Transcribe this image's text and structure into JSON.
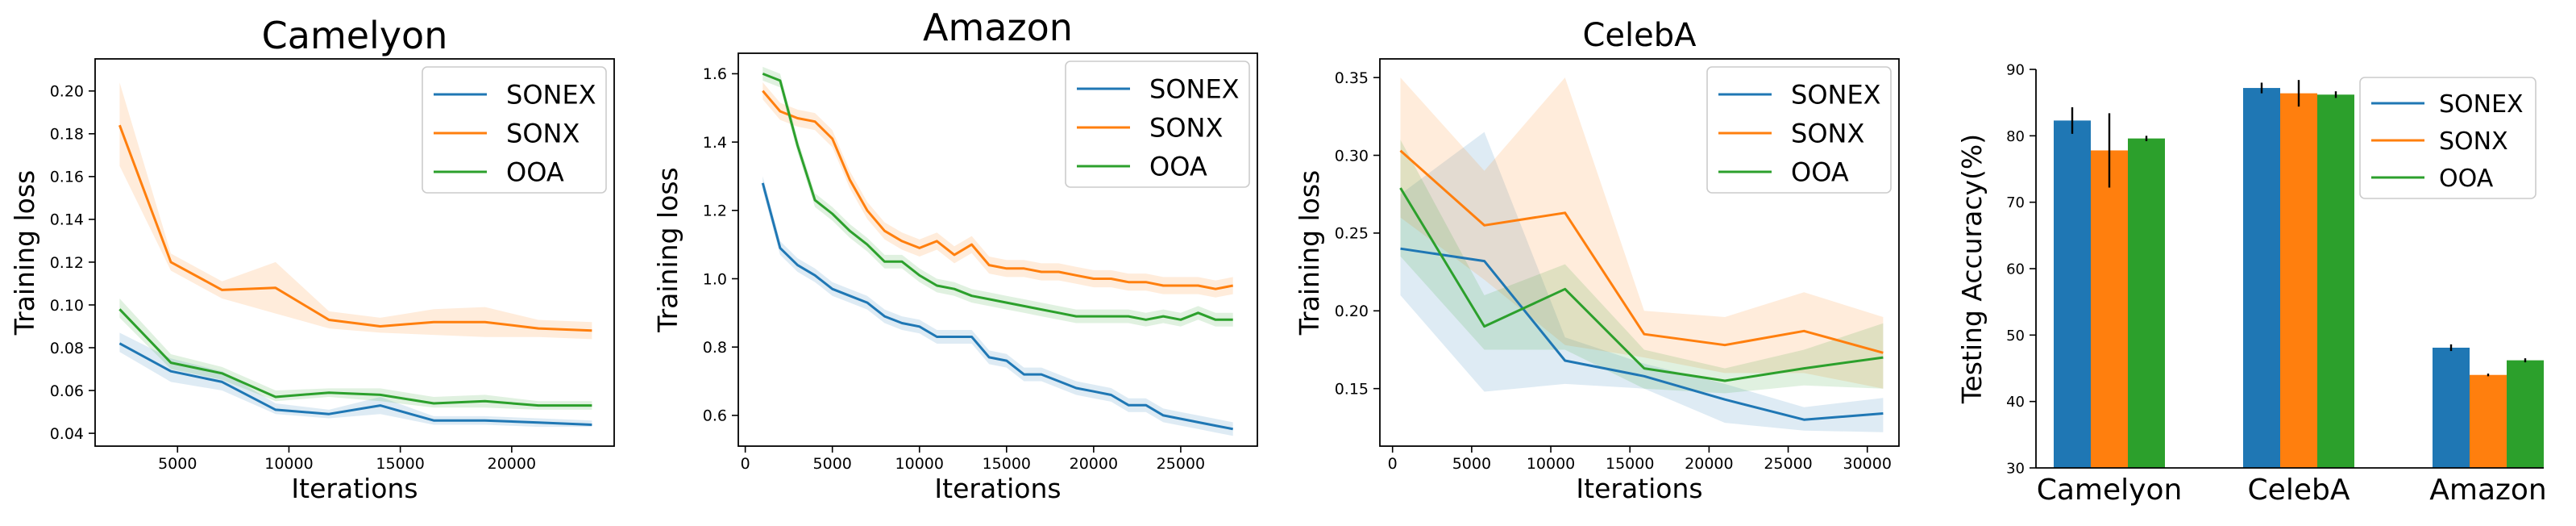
{
  "chart_data": [
    {
      "type": "line",
      "title": "Camelyon",
      "xlabel": "Iterations",
      "ylabel": "Training loss",
      "xlim": [
        1300,
        24600
      ],
      "ylim": [
        0.034,
        0.215
      ],
      "xticks": [
        5000,
        10000,
        15000,
        20000
      ],
      "xtick_labels": [
        "5000",
        "10000",
        "15000",
        "20000"
      ],
      "yticks": [
        0.04,
        0.06,
        0.08,
        0.1,
        0.12,
        0.14,
        0.16,
        0.18,
        0.2
      ],
      "ytick_labels": [
        "0.04",
        "0.06",
        "0.08",
        "0.10",
        "0.12",
        "0.14",
        "0.16",
        "0.18",
        "0.20"
      ],
      "legend_position": "top-right",
      "series": [
        {
          "name": "SONEX",
          "color": "#1f77b4",
          "x": [
            2400,
            4700,
            7000,
            9400,
            11800,
            14100,
            16500,
            18800,
            21200,
            23600
          ],
          "y": [
            0.082,
            0.069,
            0.064,
            0.051,
            0.049,
            0.053,
            0.046,
            0.046,
            0.045,
            0.044
          ],
          "lower": [
            0.078,
            0.064,
            0.06,
            0.049,
            0.047,
            0.049,
            0.044,
            0.044,
            0.043,
            0.043
          ],
          "upper": [
            0.087,
            0.075,
            0.069,
            0.054,
            0.051,
            0.057,
            0.048,
            0.048,
            0.047,
            0.046
          ]
        },
        {
          "name": "SONX",
          "color": "#ff7f0e",
          "x": [
            2400,
            4700,
            7000,
            9400,
            11800,
            14100,
            16500,
            18800,
            21200,
            23600
          ],
          "y": [
            0.184,
            0.12,
            0.107,
            0.108,
            0.093,
            0.09,
            0.092,
            0.092,
            0.089,
            0.088
          ],
          "lower": [
            0.165,
            0.116,
            0.103,
            0.096,
            0.089,
            0.087,
            0.086,
            0.085,
            0.085,
            0.084
          ],
          "upper": [
            0.204,
            0.124,
            0.111,
            0.12,
            0.097,
            0.094,
            0.098,
            0.099,
            0.093,
            0.092
          ]
        },
        {
          "name": "OOA",
          "color": "#2ca02c",
          "x": [
            2400,
            4700,
            7000,
            9400,
            11800,
            14100,
            16500,
            18800,
            21200,
            23600
          ],
          "y": [
            0.098,
            0.073,
            0.068,
            0.057,
            0.059,
            0.058,
            0.054,
            0.055,
            0.053,
            0.053
          ],
          "lower": [
            0.094,
            0.07,
            0.065,
            0.055,
            0.057,
            0.055,
            0.052,
            0.052,
            0.051,
            0.051
          ],
          "upper": [
            0.103,
            0.077,
            0.071,
            0.06,
            0.061,
            0.061,
            0.057,
            0.058,
            0.055,
            0.055
          ]
        }
      ]
    },
    {
      "type": "line",
      "title": "Amazon",
      "xlabel": "Iterations",
      "ylabel": "Training loss",
      "xlim": [
        -400,
        29400
      ],
      "ylim": [
        0.51,
        1.66
      ],
      "xticks": [
        0,
        5000,
        10000,
        15000,
        20000,
        25000
      ],
      "xtick_labels": [
        "0",
        "5000",
        "10000",
        "15000",
        "20000",
        "25000"
      ],
      "yticks": [
        0.6,
        0.8,
        1.0,
        1.2,
        1.4,
        1.6
      ],
      "ytick_labels": [
        "0.6",
        "0.8",
        "1.0",
        "1.2",
        "1.4",
        "1.6"
      ],
      "legend_position": "top-right",
      "series": [
        {
          "name": "SONEX",
          "color": "#1f77b4",
          "x": [
            1000,
            2000,
            3000,
            4000,
            5000,
            6000,
            7000,
            8000,
            9000,
            10000,
            11000,
            12000,
            13000,
            14000,
            15000,
            16000,
            17000,
            18000,
            19000,
            20000,
            21000,
            22000,
            23000,
            24000,
            25000,
            26000,
            27000,
            28000
          ],
          "y": [
            1.28,
            1.09,
            1.04,
            1.01,
            0.97,
            0.95,
            0.93,
            0.89,
            0.87,
            0.86,
            0.83,
            0.83,
            0.83,
            0.77,
            0.76,
            0.72,
            0.72,
            0.7,
            0.68,
            0.67,
            0.66,
            0.63,
            0.63,
            0.6,
            0.59,
            0.58,
            0.57,
            0.56
          ],
          "band": 0.02
        },
        {
          "name": "SONX",
          "color": "#ff7f0e",
          "x": [
            1000,
            2000,
            3000,
            4000,
            5000,
            6000,
            7000,
            8000,
            9000,
            10000,
            11000,
            12000,
            13000,
            14000,
            15000,
            16000,
            17000,
            18000,
            19000,
            20000,
            21000,
            22000,
            23000,
            24000,
            25000,
            26000,
            27000,
            28000
          ],
          "y": [
            1.55,
            1.49,
            1.47,
            1.46,
            1.41,
            1.29,
            1.2,
            1.14,
            1.11,
            1.09,
            1.11,
            1.07,
            1.1,
            1.04,
            1.03,
            1.03,
            1.02,
            1.02,
            1.01,
            1.0,
            1.0,
            0.99,
            0.99,
            0.98,
            0.98,
            0.98,
            0.97,
            0.98
          ],
          "band": 0.025
        },
        {
          "name": "OOA",
          "color": "#2ca02c",
          "x": [
            1000,
            2000,
            3000,
            4000,
            5000,
            6000,
            7000,
            8000,
            9000,
            10000,
            11000,
            12000,
            13000,
            14000,
            15000,
            16000,
            17000,
            18000,
            19000,
            20000,
            21000,
            22000,
            23000,
            24000,
            25000,
            26000,
            27000,
            28000
          ],
          "y": [
            1.6,
            1.58,
            1.39,
            1.23,
            1.19,
            1.14,
            1.1,
            1.05,
            1.05,
            1.01,
            0.98,
            0.97,
            0.95,
            0.94,
            0.93,
            0.92,
            0.91,
            0.9,
            0.89,
            0.89,
            0.89,
            0.89,
            0.88,
            0.89,
            0.88,
            0.9,
            0.88,
            0.88
          ],
          "band": 0.02
        }
      ]
    },
    {
      "type": "line",
      "title": "CelebA",
      "xlabel": "Iterations",
      "ylabel": "Training loss",
      "xlim": [
        -800,
        32000
      ],
      "ylim": [
        0.113,
        0.362
      ],
      "xticks": [
        0,
        5000,
        10000,
        15000,
        20000,
        25000,
        30000
      ],
      "xtick_labels": [
        "0",
        "5000",
        "10000",
        "15000",
        "20000",
        "25000",
        "30000"
      ],
      "yticks": [
        0.15,
        0.2,
        0.25,
        0.3,
        0.35
      ],
      "ytick_labels": [
        "0.15",
        "0.20",
        "0.25",
        "0.30",
        "0.35"
      ],
      "legend_position": "top-right",
      "series": [
        {
          "name": "SONEX",
          "color": "#1f77b4",
          "x": [
            500,
            5800,
            10900,
            15900,
            21000,
            26000,
            31000
          ],
          "y": [
            0.24,
            0.232,
            0.168,
            0.158,
            0.143,
            0.13,
            0.134
          ],
          "lower": [
            0.21,
            0.148,
            0.153,
            0.15,
            0.128,
            0.123,
            0.122
          ],
          "upper": [
            0.275,
            0.315,
            0.183,
            0.166,
            0.153,
            0.138,
            0.144
          ]
        },
        {
          "name": "SONX",
          "color": "#ff7f0e",
          "x": [
            500,
            5800,
            10900,
            15900,
            21000,
            26000,
            31000
          ],
          "y": [
            0.303,
            0.255,
            0.263,
            0.185,
            0.178,
            0.187,
            0.173
          ],
          "lower": [
            0.26,
            0.22,
            0.178,
            0.17,
            0.16,
            0.16,
            0.15
          ],
          "upper": [
            0.35,
            0.29,
            0.35,
            0.2,
            0.196,
            0.212,
            0.196
          ]
        },
        {
          "name": "OOA",
          "color": "#2ca02c",
          "x": [
            500,
            5800,
            10900,
            15900,
            21000,
            26000,
            31000
          ],
          "y": [
            0.279,
            0.19,
            0.214,
            0.163,
            0.155,
            0.163,
            0.17
          ],
          "lower": [
            0.235,
            0.175,
            0.175,
            0.15,
            0.147,
            0.152,
            0.15
          ],
          "upper": [
            0.31,
            0.21,
            0.23,
            0.175,
            0.163,
            0.175,
            0.192
          ]
        }
      ]
    },
    {
      "type": "bar",
      "title": "",
      "xlabel": "",
      "ylabel": "Testing Accuracy(%)",
      "categories": [
        "Camelyon",
        "CelebA",
        "Amazon"
      ],
      "ylim": [
        30,
        90
      ],
      "yticks": [
        30,
        40,
        50,
        60,
        70,
        80,
        90
      ],
      "ytick_labels": [
        "30",
        "40",
        "50",
        "60",
        "70",
        "80",
        "90"
      ],
      "legend_position": "top-right",
      "series": [
        {
          "name": "SONEX",
          "color": "#1f77b4",
          "values": [
            82.3,
            87.2,
            48.1
          ],
          "errors": [
            2.0,
            0.8,
            0.5
          ]
        },
        {
          "name": "SONX",
          "color": "#ff7f0e",
          "values": [
            77.8,
            86.4,
            44.0
          ],
          "errors": [
            5.6,
            2.0,
            0.2
          ]
        },
        {
          "name": "OOA",
          "color": "#2ca02c",
          "values": [
            79.6,
            86.2,
            46.2
          ],
          "errors": [
            0.4,
            0.5,
            0.3
          ]
        }
      ]
    }
  ]
}
